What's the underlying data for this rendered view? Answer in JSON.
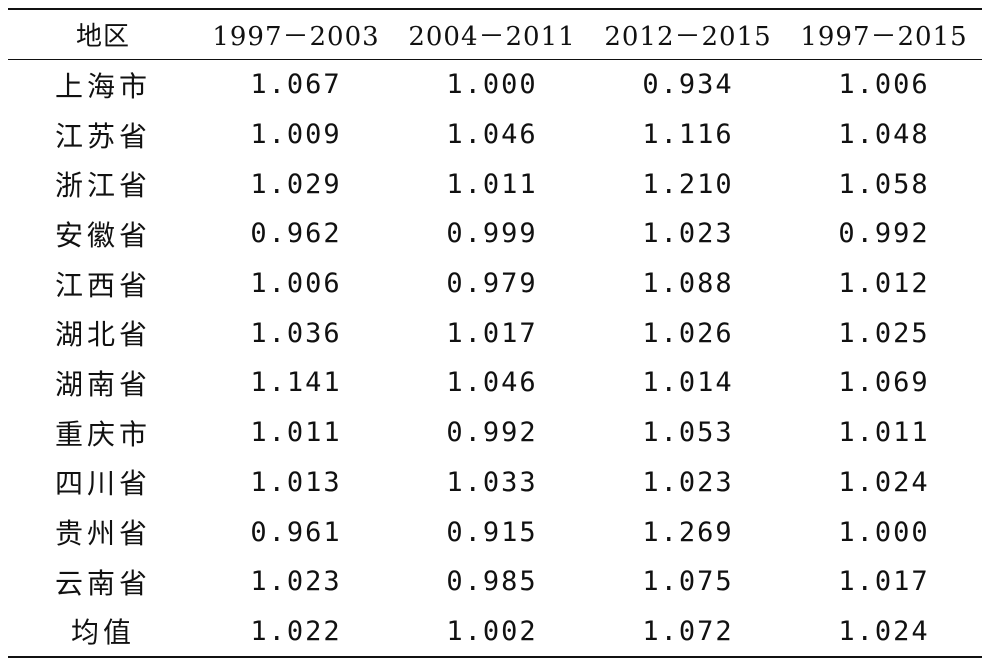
{
  "table": {
    "headers": [
      "地区",
      "1997－2003",
      "2004－2011",
      "2012－2015",
      "1997－2015"
    ],
    "rows": [
      {
        "region": "上海市",
        "values": [
          "1.067",
          "1.000",
          "0.934",
          "1.006"
        ]
      },
      {
        "region": "江苏省",
        "values": [
          "1.009",
          "1.046",
          "1.116",
          "1.048"
        ]
      },
      {
        "region": "浙江省",
        "values": [
          "1.029",
          "1.011",
          "1.210",
          "1.058"
        ]
      },
      {
        "region": "安徽省",
        "values": [
          "0.962",
          "0.999",
          "1.023",
          "0.992"
        ]
      },
      {
        "region": "江西省",
        "values": [
          "1.006",
          "0.979",
          "1.088",
          "1.012"
        ]
      },
      {
        "region": "湖北省",
        "values": [
          "1.036",
          "1.017",
          "1.026",
          "1.025"
        ]
      },
      {
        "region": "湖南省",
        "values": [
          "1.141",
          "1.046",
          "1.014",
          "1.069"
        ]
      },
      {
        "region": "重庆市",
        "values": [
          "1.011",
          "0.992",
          "1.053",
          "1.011"
        ]
      },
      {
        "region": "四川省",
        "values": [
          "1.013",
          "1.033",
          "1.023",
          "1.024"
        ]
      },
      {
        "region": "贵州省",
        "values": [
          "0.961",
          "0.915",
          "1.269",
          "1.000"
        ]
      },
      {
        "region": "云南省",
        "values": [
          "1.023",
          "0.985",
          "1.075",
          "1.017"
        ]
      },
      {
        "region": "均值",
        "values": [
          "1.022",
          "1.002",
          "1.072",
          "1.024"
        ]
      }
    ]
  }
}
